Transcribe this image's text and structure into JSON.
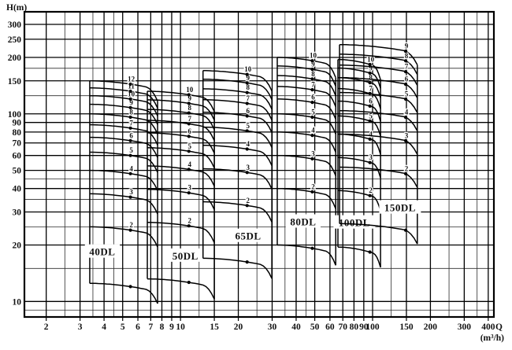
{
  "page": {
    "background": "#ffffff",
    "ink": "#000000"
  },
  "chart_data": {
    "type": "line",
    "description_visible_text_only": "H-Q selection chart for DL multistage pump families",
    "x_axis": {
      "label": "Q",
      "unit": "(m³/h)",
      "scale": "log",
      "range": [
        1.54,
        428
      ],
      "ticks": [
        2,
        3,
        4,
        5,
        6,
        7,
        8,
        9,
        10,
        15,
        20,
        30,
        40,
        50,
        60,
        70,
        80,
        90,
        100,
        150,
        200,
        300,
        400
      ],
      "minor_gridlines": [
        2.5,
        3.5,
        4.5,
        12.5,
        25,
        35,
        45,
        125,
        250,
        350
      ]
    },
    "y_axis": {
      "label": "H(m)",
      "scale": "log",
      "range": [
        8.27,
        350
      ],
      "ticks": [
        10,
        20,
        30,
        40,
        50,
        60,
        70,
        80,
        90,
        100,
        150,
        200,
        250,
        300
      ],
      "minor_gridlines": [
        9,
        15,
        25,
        35,
        45,
        125,
        175
      ]
    },
    "grid": "log-log full grid",
    "curve_shape": {
      "mid_droop": 0.1,
      "end_droop": 0.12,
      "tail_start": 0.82
    },
    "families": [
      {
        "name": "40DL",
        "q_min": 3.37,
        "q_max": 7.6,
        "head_per_stage": 12.5,
        "stages": [
          2,
          3,
          4,
          5,
          6,
          7,
          8,
          9,
          10,
          11,
          12
        ],
        "base_curve_stage": 1,
        "label_t": 0.6,
        "name_q": 3.92,
        "name_h": 18.4
      },
      {
        "name": "50DL",
        "q_min": 6.72,
        "q_max": 15.0,
        "head_per_stage": 13.2,
        "stages": [
          2,
          3,
          4,
          5,
          6,
          7,
          8,
          9,
          10
        ],
        "base_curve_stage": 1,
        "label_t": 0.62,
        "name_q": 10.6,
        "name_h": 17.5
      },
      {
        "name": "65DL",
        "q_min": 13.1,
        "q_max": 29.9,
        "head_per_stage": 17.0,
        "stages": [
          2,
          3,
          4,
          5,
          6,
          7,
          8,
          9,
          10
        ],
        "base_curve_stage": 1,
        "label_t": 0.64,
        "name_q": 22.5,
        "name_h": 22.3
      },
      {
        "name": "80DL",
        "q_min": 31.9,
        "q_max": 64.3,
        "head_per_stage": 20.0,
        "stages": [
          2,
          3,
          4,
          5,
          6,
          7,
          8,
          9,
          10
        ],
        "base_curve_stage": 1,
        "label_t": 0.6,
        "name_q": 43.5,
        "name_h": 26.6
      },
      {
        "name": "100DL",
        "q_min": 66.0,
        "q_max": 110.0,
        "head_per_stage": 19.5,
        "stages": [
          2,
          3,
          4,
          5,
          6,
          7,
          8,
          9,
          10
        ],
        "base_curve_stage": 1,
        "label_t": 0.75,
        "name_q": 80.4,
        "name_h": 26.3
      },
      {
        "name": "150DL",
        "q_min": 67.3,
        "q_max": 171.0,
        "head_per_stage": 26.0,
        "stages": [
          2,
          3,
          4,
          5,
          6,
          7,
          8,
          9
        ],
        "base_curve_stage": 1,
        "label_t": 0.85,
        "name_q": 139.0,
        "name_h": 31.6
      }
    ],
    "markers": "black dot on each curve at label position",
    "legend_position": "none"
  }
}
